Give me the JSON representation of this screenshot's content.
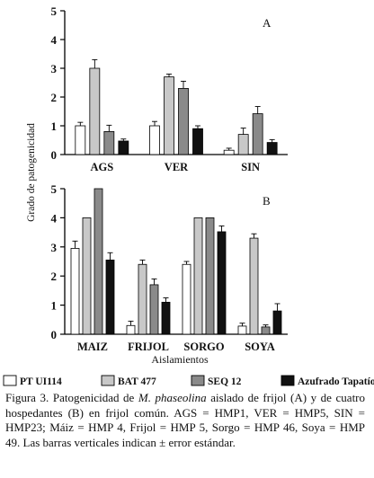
{
  "figure": {
    "ylabel": "Grado de patogenicidad",
    "xlabel": "Aislamientos",
    "legend": [
      {
        "name": "PT UI114",
        "color": "#ffffff"
      },
      {
        "name": "BAT 477",
        "color": "#c8c8c8"
      },
      {
        "name": "SEQ 12",
        "color": "#8a8a8a"
      },
      {
        "name": "Azufrado Tapatío",
        "color": "#111111"
      }
    ]
  },
  "chart_data": [
    {
      "type": "bar",
      "panel_label": "A",
      "categories": [
        "AGS",
        "VER",
        "SIN"
      ],
      "series": [
        {
          "name": "PT UI114",
          "values": [
            1.0,
            1.0,
            0.15
          ],
          "errors": [
            0.12,
            0.15,
            0.07
          ]
        },
        {
          "name": "BAT 477",
          "values": [
            3.0,
            2.7,
            0.7
          ],
          "errors": [
            0.3,
            0.1,
            0.22
          ]
        },
        {
          "name": "SEQ 12",
          "values": [
            0.8,
            2.3,
            1.42
          ],
          "errors": [
            0.22,
            0.25,
            0.25
          ]
        },
        {
          "name": "Azufrado Tapatío",
          "values": [
            0.47,
            0.9,
            0.42
          ],
          "errors": [
            0.07,
            0.1,
            0.1
          ]
        }
      ],
      "ylim": [
        0,
        5
      ],
      "yticks": [
        0,
        1,
        2,
        3,
        4,
        5
      ]
    },
    {
      "type": "bar",
      "panel_label": "B",
      "categories": [
        "MAIZ",
        "FRIJOL",
        "SORGO",
        "SOYA"
      ],
      "series": [
        {
          "name": "PT UI114",
          "values": [
            2.95,
            0.3,
            2.4,
            0.28
          ],
          "errors": [
            0.25,
            0.15,
            0.1,
            0.1
          ]
        },
        {
          "name": "BAT 477",
          "values": [
            4.0,
            2.4,
            4.0,
            3.3
          ],
          "errors": [
            0.0,
            0.15,
            0.0,
            0.15
          ]
        },
        {
          "name": "SEQ 12",
          "values": [
            5.0,
            1.7,
            4.0,
            0.25
          ],
          "errors": [
            0.0,
            0.2,
            0.0,
            0.07
          ]
        },
        {
          "name": "Azufrado Tapatío",
          "values": [
            2.55,
            1.1,
            3.52,
            0.8
          ],
          "errors": [
            0.25,
            0.15,
            0.2,
            0.25
          ]
        }
      ],
      "ylim": [
        0,
        5
      ],
      "yticks": [
        0,
        1,
        2,
        3,
        4,
        5
      ]
    }
  ],
  "caption": {
    "prefix": "Figura 3. Patogenicidad de ",
    "species": "M. phaseolina",
    "rest": " aislado de frijol (A) y de cuatro hospedantes (B) en frijol común. AGS = HMP1, VER = HMP5, SIN = HMP23; Máiz = HMP 4, Frijol = HMP 5, Sorgo = HMP 46, Soya = HMP 49. Las barras verticales indican ± error estándar."
  }
}
